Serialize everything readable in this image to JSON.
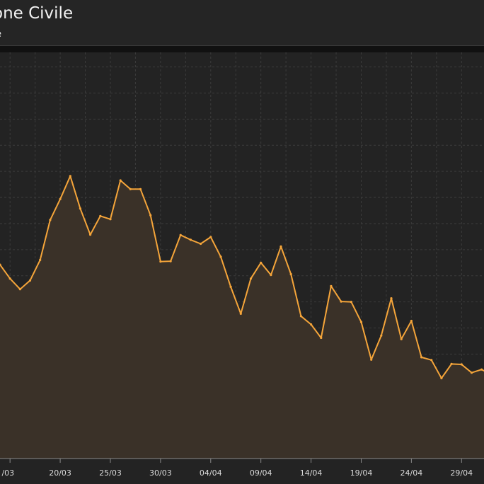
{
  "header": {
    "title": "one Civile",
    "subtitle": "e"
  },
  "colors": {
    "line": "#f5a53a",
    "area": "#3a3128",
    "grid": "#3c3c3c",
    "plot_bg": "#232323",
    "tick_text": "#dddddd"
  },
  "chart_data": {
    "type": "area",
    "title": "one Civile",
    "xlabel": "",
    "ylabel": "",
    "grid": true,
    "x_ticks": [
      "/03",
      "20/03",
      "25/03",
      "30/03",
      "04/04",
      "09/04",
      "14/04",
      "19/04",
      "24/04",
      "29/04"
    ],
    "x_tick_days": [
      15,
      20,
      25,
      30,
      35,
      40,
      45,
      50,
      55,
      60
    ],
    "x_start_day": 14,
    "x_end_day": 62.25,
    "ylim": [
      0,
      100
    ],
    "series": [
      {
        "values": [
          49.0,
          45.5,
          42.8,
          45.0,
          50.2,
          60.3,
          65.6,
          71.4,
          63.2,
          56.6,
          61.3,
          60.5,
          70.3,
          68.1,
          68.1,
          61.5,
          49.8,
          49.9,
          56.5,
          55.3,
          54.3,
          56.0,
          51.0,
          43.4,
          36.6,
          45.5,
          49.5,
          46.4,
          53.6,
          46.6,
          36.0,
          33.9,
          30.5,
          43.6,
          39.7,
          39.6,
          34.5,
          25.0,
          31.1,
          40.5,
          30.2,
          34.8,
          25.6,
          24.9,
          20.3,
          23.9,
          23.8,
          21.7,
          22.5,
          21.2
        ]
      }
    ]
  }
}
